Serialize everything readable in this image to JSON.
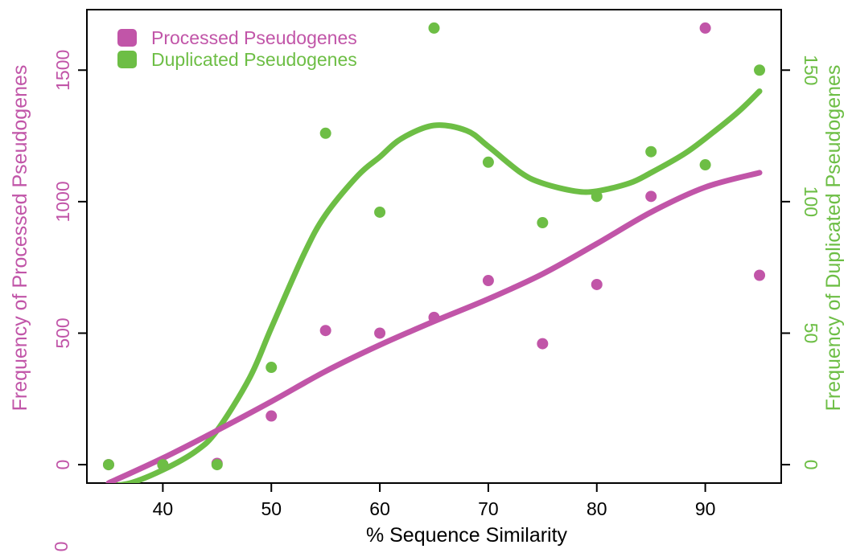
{
  "colors": {
    "processed": "#c155a8",
    "duplicated": "#6dbe45",
    "axis": "#000000",
    "background": "#ffffff"
  },
  "chart_data": {
    "type": "scatter",
    "xlabel": "% Sequence Similarity",
    "ylabel_left": "Frequency of Processed Pseudogenes",
    "ylabel_right": "Frequency of Duplicated Pseudogenes",
    "xlim": [
      33,
      97
    ],
    "ylim_left": [
      -70,
      1730
    ],
    "ylim_right": [
      -7,
      173
    ],
    "x_ticks": [
      40,
      50,
      60,
      70,
      80,
      90
    ],
    "y_ticks_left": [
      0,
      500,
      1000,
      1500
    ],
    "y_ticks_right": [
      0,
      50,
      100,
      150
    ],
    "stray_label": "0",
    "legend_position": "top-left",
    "series": [
      {
        "name": "Processed Pseudogenes",
        "axis": "left",
        "color": "#c155a8",
        "x": [
          35,
          40,
          45,
          50,
          55,
          60,
          65,
          70,
          75,
          80,
          85,
          90,
          95
        ],
        "y": [
          0,
          0,
          5,
          185,
          510,
          500,
          560,
          700,
          460,
          685,
          1020,
          1660,
          720
        ],
        "trend": {
          "x": [
            35,
            40,
            45,
            50,
            55,
            60,
            65,
            70,
            75,
            80,
            85,
            90,
            95
          ],
          "y": [
            -70,
            25,
            130,
            240,
            355,
            455,
            545,
            630,
            725,
            840,
            960,
            1055,
            1110
          ]
        }
      },
      {
        "name": "Duplicated Pseudogenes",
        "axis": "right",
        "color": "#6dbe45",
        "x": [
          35,
          40,
          45,
          50,
          55,
          60,
          65,
          70,
          75,
          80,
          85,
          90,
          95
        ],
        "y": [
          0,
          0,
          0,
          37,
          126,
          96,
          166,
          115,
          92,
          102,
          119,
          114,
          150
        ],
        "trend": {
          "x": [
            35,
            37,
            40,
            43,
            45,
            48,
            50,
            53,
            55,
            58,
            60,
            62,
            65,
            68,
            70,
            73,
            75,
            78,
            80,
            83,
            85,
            88,
            90,
            93,
            95
          ],
          "y": [
            -8,
            -7,
            -2,
            5,
            13,
            33,
            52,
            80,
            95,
            110,
            117,
            124,
            129,
            127,
            121,
            111,
            107,
            104,
            104,
            107,
            111,
            118,
            124,
            134,
            142
          ]
        }
      }
    ]
  }
}
